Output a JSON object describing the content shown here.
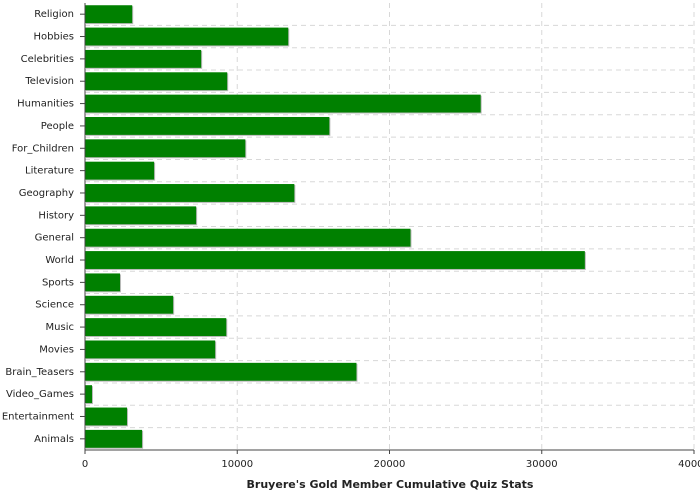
{
  "chart_data": {
    "type": "barh",
    "title": "Bruyere's Gold Member Cumulative Quiz Stats",
    "categories": [
      "Religion",
      "Hobbies",
      "Celebrities",
      "Television",
      "Humanities",
      "People",
      "For_Children",
      "Literature",
      "Geography",
      "History",
      "General",
      "World",
      "Sports",
      "Science",
      "Music",
      "Movies",
      "Brain_Teasers",
      "Video_Games",
      "Entertainment",
      "Animals"
    ],
    "values": [
      3100,
      13350,
      7630,
      9340,
      25990,
      16050,
      10530,
      4540,
      13750,
      7300,
      21380,
      32830,
      2300,
      5790,
      9280,
      8550,
      17830,
      460,
      2760,
      3750
    ],
    "color": "#008000",
    "xlim": [
      0,
      40000
    ],
    "xticks": [
      0,
      10000,
      20000,
      30000,
      40000
    ],
    "grid": true
  }
}
